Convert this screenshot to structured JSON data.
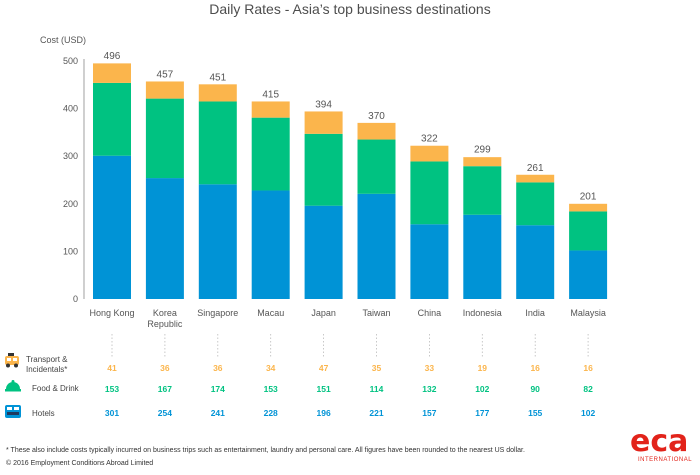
{
  "chart_data": {
    "type": "bar",
    "stacked": true,
    "title": "Daily Rates - Asia’s top business destinations",
    "ylabel": "Cost (USD)",
    "ylim": [
      0,
      500
    ],
    "yticks": [
      0,
      100,
      200,
      300,
      400,
      500
    ],
    "categories": [
      "Hong Kong",
      "Korea\nRepublic",
      "Singapore",
      "Macau",
      "Japan",
      "Taiwan",
      "China",
      "Indonesia",
      "India",
      "Malaysia"
    ],
    "totals": [
      496,
      457,
      451,
      415,
      394,
      370,
      322,
      299,
      261,
      201
    ],
    "series": [
      {
        "name": "Hotels",
        "color": "#0093d6",
        "values": [
          301,
          254,
          241,
          228,
          196,
          221,
          157,
          177,
          155,
          102
        ]
      },
      {
        "name": "Food & Drink",
        "color": "#00c281",
        "values": [
          153,
          167,
          174,
          153,
          151,
          114,
          132,
          102,
          90,
          82
        ]
      },
      {
        "name": "Transport & Incidentals*",
        "color": "#fbb54c",
        "values": [
          41,
          36,
          36,
          34,
          47,
          35,
          33,
          19,
          16,
          16
        ]
      }
    ],
    "grid": false,
    "legend": "table-below"
  },
  "footnote": "* These also include costs typically incurred on business trips such as entertainment, laundry and personal care. All figures have been rounded to the nearest US dollar.",
  "copyright": "© 2016 Employment Conditions Abroad Limited",
  "logo": {
    "text": "eca",
    "sub": "INTERNATIONAL"
  },
  "icons": {
    "transport": "taxi-icon",
    "food": "food-dish-icon",
    "hotels": "bed-icon"
  }
}
